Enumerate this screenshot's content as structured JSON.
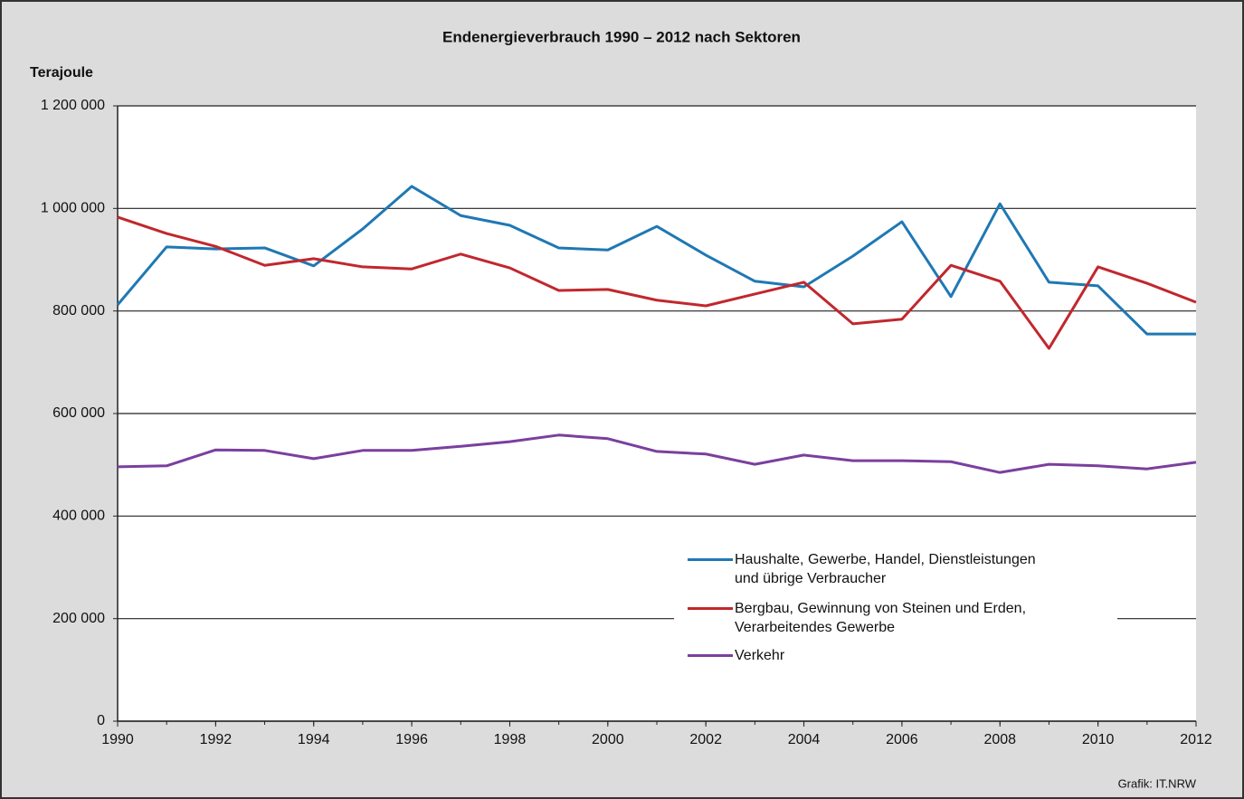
{
  "chart_data": {
    "type": "line",
    "title": "Endenergieverbrauch 1990 – 2012 nach Sektoren",
    "y_label": "Terajoule",
    "source": "Grafik: IT.NRW",
    "x": [
      1990,
      1991,
      1992,
      1993,
      1994,
      1995,
      1996,
      1997,
      1998,
      1999,
      2000,
      2001,
      2002,
      2003,
      2004,
      2005,
      2006,
      2007,
      2008,
      2009,
      2010,
      2011,
      2012
    ],
    "xlim": [
      1990,
      2012
    ],
    "xticks": [
      1990,
      1992,
      1994,
      1996,
      1998,
      2000,
      2002,
      2004,
      2006,
      2008,
      2010,
      2012
    ],
    "ylim": [
      0,
      1200000
    ],
    "yticks": [
      0,
      {
        "value": 200000,
        "label": "200 000"
      },
      {
        "value": 400000,
        "label": "400 000"
      },
      {
        "value": 600000,
        "label": "600 000"
      },
      {
        "value": 800000,
        "label": "800 000"
      },
      {
        "value": 1000000,
        "label": "1 000 000"
      },
      {
        "value": 1200000,
        "label": "1 200 000"
      }
    ],
    "grid": true,
    "legend": "lower right",
    "series": [
      {
        "name": "Haushalte, Gewerbe, Handel, Dienstleistungen\nund übrige Verbraucher",
        "color": "#1f78b4",
        "values": [
          812000,
          925000,
          921000,
          923000,
          888000,
          960000,
          1043000,
          986000,
          967000,
          923000,
          919000,
          965000,
          909000,
          858000,
          847000,
          907000,
          974000,
          828000,
          1009000,
          856000,
          849000,
          755000,
          755000
        ]
      },
      {
        "name": "Bergbau, Gewinnung von Steinen und Erden,\nVerarbeitendes Gewerbe",
        "color": "#c1272d",
        "values": [
          983000,
          951000,
          926000,
          889000,
          902000,
          886000,
          882000,
          911000,
          884000,
          840000,
          842000,
          821000,
          810000,
          833000,
          856000,
          775000,
          784000,
          889000,
          858000,
          727000,
          886000,
          854000,
          817000
        ]
      },
      {
        "name": "Verkehr",
        "color": "#7b3f9e",
        "values": [
          496000,
          498000,
          529000,
          528000,
          512000,
          528000,
          528000,
          536000,
          545000,
          558000,
          551000,
          526000,
          521000,
          501000,
          519000,
          508000,
          508000,
          506000,
          485000,
          501000,
          498000,
          492000,
          505000
        ]
      }
    ]
  }
}
